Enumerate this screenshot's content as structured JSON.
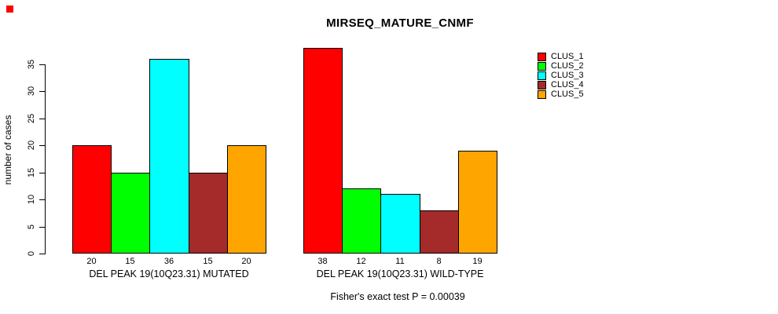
{
  "title": "MIRSEQ_MATURE_CNMF",
  "corner_marker": {
    "color": "#ff0000"
  },
  "chart_data": {
    "type": "bar",
    "title": "MIRSEQ_MATURE_CNMF",
    "ylabel": "number of cases",
    "xlabel": "",
    "ylim": [
      0,
      35
    ],
    "yticks": [
      0,
      5,
      10,
      15,
      20,
      25,
      30,
      35
    ],
    "grid": false,
    "legend_position": "right-outside",
    "categories": [
      "DEL PEAK 19(10Q23.31) MUTATED",
      "DEL PEAK 19(10Q23.31) WILD-TYPE"
    ],
    "series": [
      {
        "name": "CLUS_1",
        "color": "#ff0000",
        "values": [
          20,
          38
        ]
      },
      {
        "name": "CLUS_2",
        "color": "#00ff00",
        "values": [
          15,
          12
        ]
      },
      {
        "name": "CLUS_3",
        "color": "#00ffff",
        "values": [
          36,
          11
        ]
      },
      {
        "name": "CLUS_4",
        "color": "#a52a2a",
        "values": [
          15,
          8
        ]
      },
      {
        "name": "CLUS_5",
        "color": "#ffa500",
        "values": [
          20,
          19
        ]
      }
    ],
    "bar_value_labels": {
      "DEL PEAK 19(10Q23.31) MUTATED": [
        20,
        15,
        36,
        15,
        20
      ],
      "DEL PEAK 19(10Q23.31) WILD-TYPE": [
        38,
        12,
        11,
        8,
        19
      ]
    },
    "annotation": "Fisher's exact test P = 0.00039"
  }
}
